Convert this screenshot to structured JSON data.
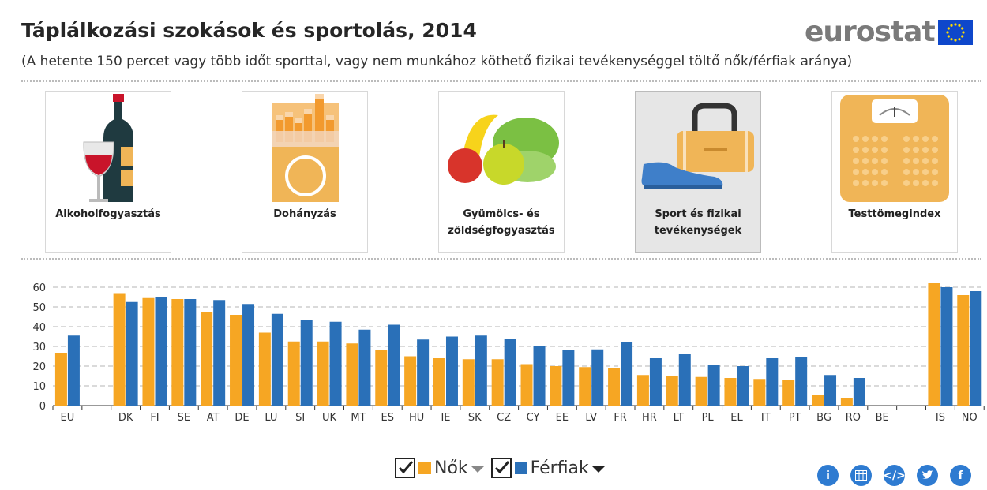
{
  "header": {
    "title": "Táplálkozási szokások és sportolás, 2014",
    "subtitle": "(A hetente 150 percet vagy több időt sporttal, vagy nem munkához köthető fizikai tevékenységgel töltő nők/férfiak aránya)",
    "logo_text": "eurostat"
  },
  "tiles": [
    {
      "label": "Alkoholfogyasztás",
      "icon": "wine-icon"
    },
    {
      "label": "Dohányzás",
      "icon": "cigarettes-icon"
    },
    {
      "label": "Gyümölcs- és zöldségfogyasztás",
      "icon": "fruit-vegetable-icon"
    },
    {
      "label": "Sport és fizikai tevékenységek",
      "icon": "sport-bag-shoe-icon",
      "active": true
    },
    {
      "label": "Testtömegindex",
      "icon": "scale-icon"
    }
  ],
  "legend": {
    "women": "Nők",
    "men": "Férfiak"
  },
  "share_icons": [
    "info-icon",
    "table-icon",
    "embed-icon",
    "twitter-icon",
    "facebook-icon"
  ],
  "colors": {
    "women": "#f6a623",
    "men": "#2a70b8",
    "accent": "#2e7bd1",
    "tile_bg": "#f0b557"
  },
  "chart_data": {
    "type": "bar",
    "categories": [
      "EU",
      "",
      "DK",
      "FI",
      "SE",
      "AT",
      "DE",
      "LU",
      "SI",
      "UK",
      "MT",
      "ES",
      "HU",
      "IE",
      "SK",
      "CZ",
      "CY",
      "EE",
      "LV",
      "FR",
      "HR",
      "LT",
      "PL",
      "EL",
      "IT",
      "PT",
      "BG",
      "RO",
      "BE",
      "",
      "IS",
      "NO"
    ],
    "series": [
      {
        "name": "Nők",
        "values": [
          26.5,
          null,
          57,
          54.5,
          54,
          47.5,
          46,
          37,
          32.5,
          32.5,
          31.5,
          28,
          25,
          24,
          23.5,
          23.5,
          21,
          20,
          19.5,
          19,
          15.5,
          15,
          14.5,
          14,
          13.5,
          13,
          5.5,
          4,
          null,
          null,
          62,
          56
        ]
      },
      {
        "name": "Férfiak",
        "values": [
          35.5,
          null,
          52.5,
          55,
          54,
          53.5,
          51.5,
          46.5,
          43.5,
          42.5,
          38.5,
          41,
          33.5,
          35,
          35.5,
          34,
          30,
          28,
          28.5,
          32,
          24,
          26,
          20.5,
          20,
          24,
          24.5,
          15.5,
          14,
          null,
          null,
          60,
          58
        ]
      }
    ],
    "ylim": [
      0,
      65
    ],
    "yticks": [
      0,
      10,
      20,
      30,
      40,
      50,
      60
    ],
    "grid": true
  }
}
